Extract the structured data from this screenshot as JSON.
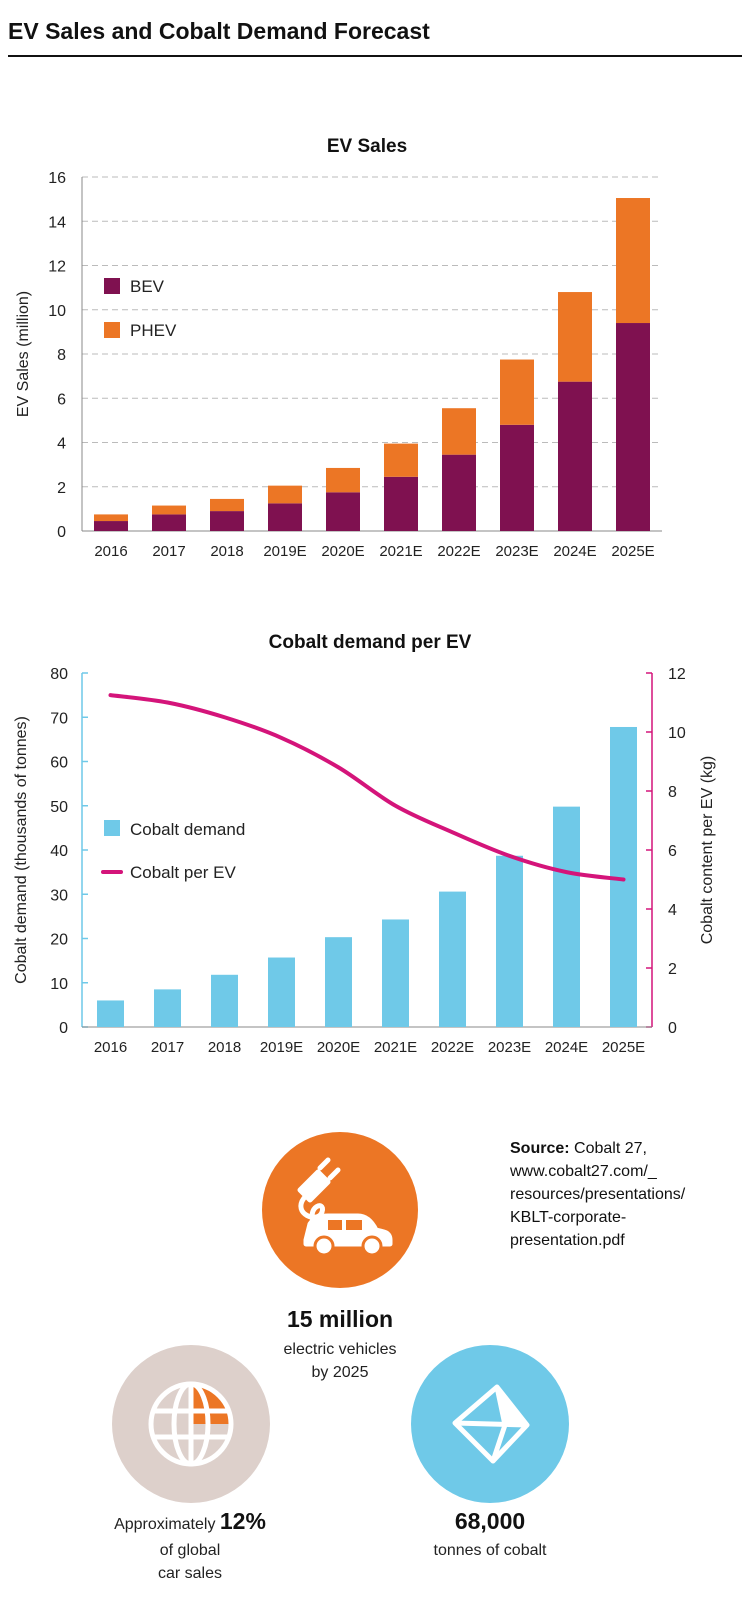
{
  "page": {
    "title": "EV Sales and Cobalt Demand Forecast"
  },
  "chart_data": [
    {
      "type": "bar",
      "stacked": true,
      "title": "EV Sales",
      "xlabel": "",
      "ylabel": "EV Sales (million)",
      "categories": [
        "2016",
        "2017",
        "2018",
        "2019E",
        "2020E",
        "2021E",
        "2022E",
        "2023E",
        "2024E",
        "2025E"
      ],
      "series": [
        {
          "name": "BEV",
          "color": "#7f1150",
          "values": [
            0.45,
            0.75,
            0.9,
            1.25,
            1.75,
            2.45,
            3.45,
            4.8,
            6.75,
            9.4
          ]
        },
        {
          "name": "PHEV",
          "color": "#ec7625",
          "values": [
            0.3,
            0.4,
            0.55,
            0.8,
            1.1,
            1.5,
            2.1,
            2.95,
            4.05,
            5.65
          ]
        }
      ],
      "ylim": [
        0,
        16
      ],
      "yticks": [
        0,
        2,
        4,
        6,
        8,
        10,
        12,
        14,
        16
      ],
      "grid": "dashed-horizontal",
      "legend": "left"
    },
    {
      "type": "bar+line",
      "title": "Cobalt demand per EV",
      "xlabel": "",
      "ylabel": "Cobalt demand (thousands of tonnes)",
      "y2label": "Cobalt content per EV (kg)",
      "categories": [
        "2016",
        "2017",
        "2018",
        "2019E",
        "2020E",
        "2021E",
        "2022E",
        "2023E",
        "2024E",
        "2025E"
      ],
      "series": [
        {
          "name": "Cobalt demand",
          "kind": "bar",
          "axis": "left",
          "color": "#6fc9e8",
          "values": [
            6,
            8.5,
            11.8,
            15.7,
            20.3,
            24.3,
            30.6,
            38.7,
            49.8,
            67.8
          ]
        },
        {
          "name": "Cobalt per EV",
          "kind": "line",
          "axis": "right",
          "color": "#d4147a",
          "values": [
            11.25,
            11.0,
            10.5,
            9.8,
            8.8,
            7.5,
            6.6,
            5.8,
            5.25,
            5.0
          ]
        }
      ],
      "ylim": [
        0,
        80
      ],
      "yticks": [
        0,
        10,
        20,
        30,
        40,
        50,
        60,
        70,
        80
      ],
      "y2lim": [
        0,
        12
      ],
      "y2ticks": [
        0,
        2,
        4,
        6,
        8,
        10,
        12
      ],
      "grid": "none",
      "legend": "left"
    }
  ],
  "infographic": {
    "ev_stat": {
      "value": "15 million",
      "line1": "electric vehicles",
      "line2": "by 2025",
      "icon": "ev-car-icon",
      "color": "#ec7625"
    },
    "share_stat": {
      "prefix": "Approximately",
      "value": "12%",
      "line1": "of global",
      "line2": "car sales",
      "icon": "globe-icon",
      "color": "#ddd0cb",
      "accent": "#ec7625"
    },
    "cobalt_stat": {
      "value": "68,000",
      "line1": "tonnes of cobalt",
      "icon": "cobalt-crystal-icon",
      "color": "#6fc9e8"
    }
  },
  "source": {
    "label": "Source:",
    "text": "Cobalt 27,",
    "lines": [
      "www.cobalt27.com/_",
      "resources/presentations/",
      "KBLT-corporate-",
      "presentation.pdf"
    ]
  }
}
